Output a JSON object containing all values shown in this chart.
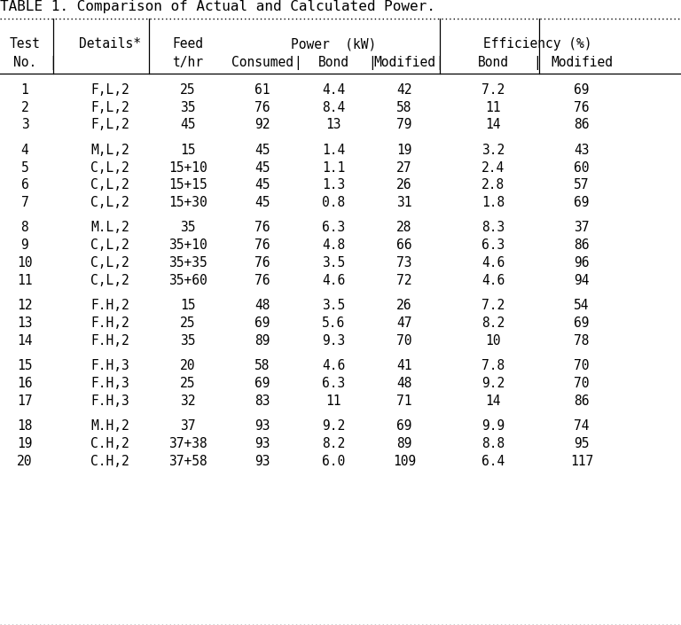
{
  "title": "TABLE 1. Comparison of Actual and Calculated Power.",
  "background_color": "#ffffff",
  "text_color": "#000000",
  "rows": [
    [
      "1",
      "F,L,2",
      "25",
      "61",
      "4.4",
      "42",
      "7.2",
      "69"
    ],
    [
      "2",
      "F,L,2",
      "35",
      "76",
      "8.4",
      "58",
      "11",
      "76"
    ],
    [
      "3",
      "F,L,2",
      "45",
      "92",
      "13",
      "79",
      "14",
      "86"
    ],
    [
      "",
      "",
      "",
      "",
      "",
      "",
      "",
      ""
    ],
    [
      "4",
      "M,L,2",
      "15",
      "45",
      "1.4",
      "19",
      "3.2",
      "43"
    ],
    [
      "5",
      "C,L,2",
      "15+10",
      "45",
      "1.1",
      "27",
      "2.4",
      "60"
    ],
    [
      "6",
      "C,L,2",
      "15+15",
      "45",
      "1.3",
      "26",
      "2.8",
      "57"
    ],
    [
      "7",
      "C,L,2",
      "15+30",
      "45",
      "0.8",
      "31",
      "1.8",
      "69"
    ],
    [
      "",
      "",
      "",
      "",
      "",
      "",
      "",
      ""
    ],
    [
      "8",
      "M.L,2",
      "35",
      "76",
      "6.3",
      "28",
      "8.3",
      "37"
    ],
    [
      "9",
      "C,L,2",
      "35+10",
      "76",
      "4.8",
      "66",
      "6.3",
      "86"
    ],
    [
      "10",
      "C,L,2",
      "35+35",
      "76",
      "3.5",
      "73",
      "4.6",
      "96"
    ],
    [
      "11",
      "C,L,2",
      "35+60",
      "76",
      "4.6",
      "72",
      "4.6",
      "94"
    ],
    [
      "",
      "",
      "",
      "",
      "",
      "",
      "",
      ""
    ],
    [
      "12",
      "F.H,2",
      "15",
      "48",
      "3.5",
      "26",
      "7.2",
      "54"
    ],
    [
      "13",
      "F.H,2",
      "25",
      "69",
      "5.6",
      "47",
      "8.2",
      "69"
    ],
    [
      "14",
      "F.H,2",
      "35",
      "89",
      "9.3",
      "70",
      "10",
      "78"
    ],
    [
      "",
      "",
      "",
      "",
      "",
      "",
      "",
      ""
    ],
    [
      "15",
      "F.H,3",
      "20",
      "58",
      "4.6",
      "41",
      "7.8",
      "70"
    ],
    [
      "16",
      "F.H,3",
      "25",
      "69",
      "6.3",
      "48",
      "9.2",
      "70"
    ],
    [
      "17",
      "F.H,3",
      "32",
      "83",
      "11",
      "71",
      "14",
      "86"
    ],
    [
      "",
      "",
      "",
      "",
      "",
      "",
      "",
      ""
    ],
    [
      "18",
      "M.H,2",
      "37",
      "93",
      "9.2",
      "69",
      "9.9",
      "74"
    ],
    [
      "19",
      "C.H,2",
      "37+38",
      "93",
      "8.2",
      "89",
      "8.8",
      "95"
    ],
    [
      "20",
      "C.H,2",
      "37+58",
      "93",
      "6.0",
      "109",
      "6.4",
      "117"
    ]
  ]
}
